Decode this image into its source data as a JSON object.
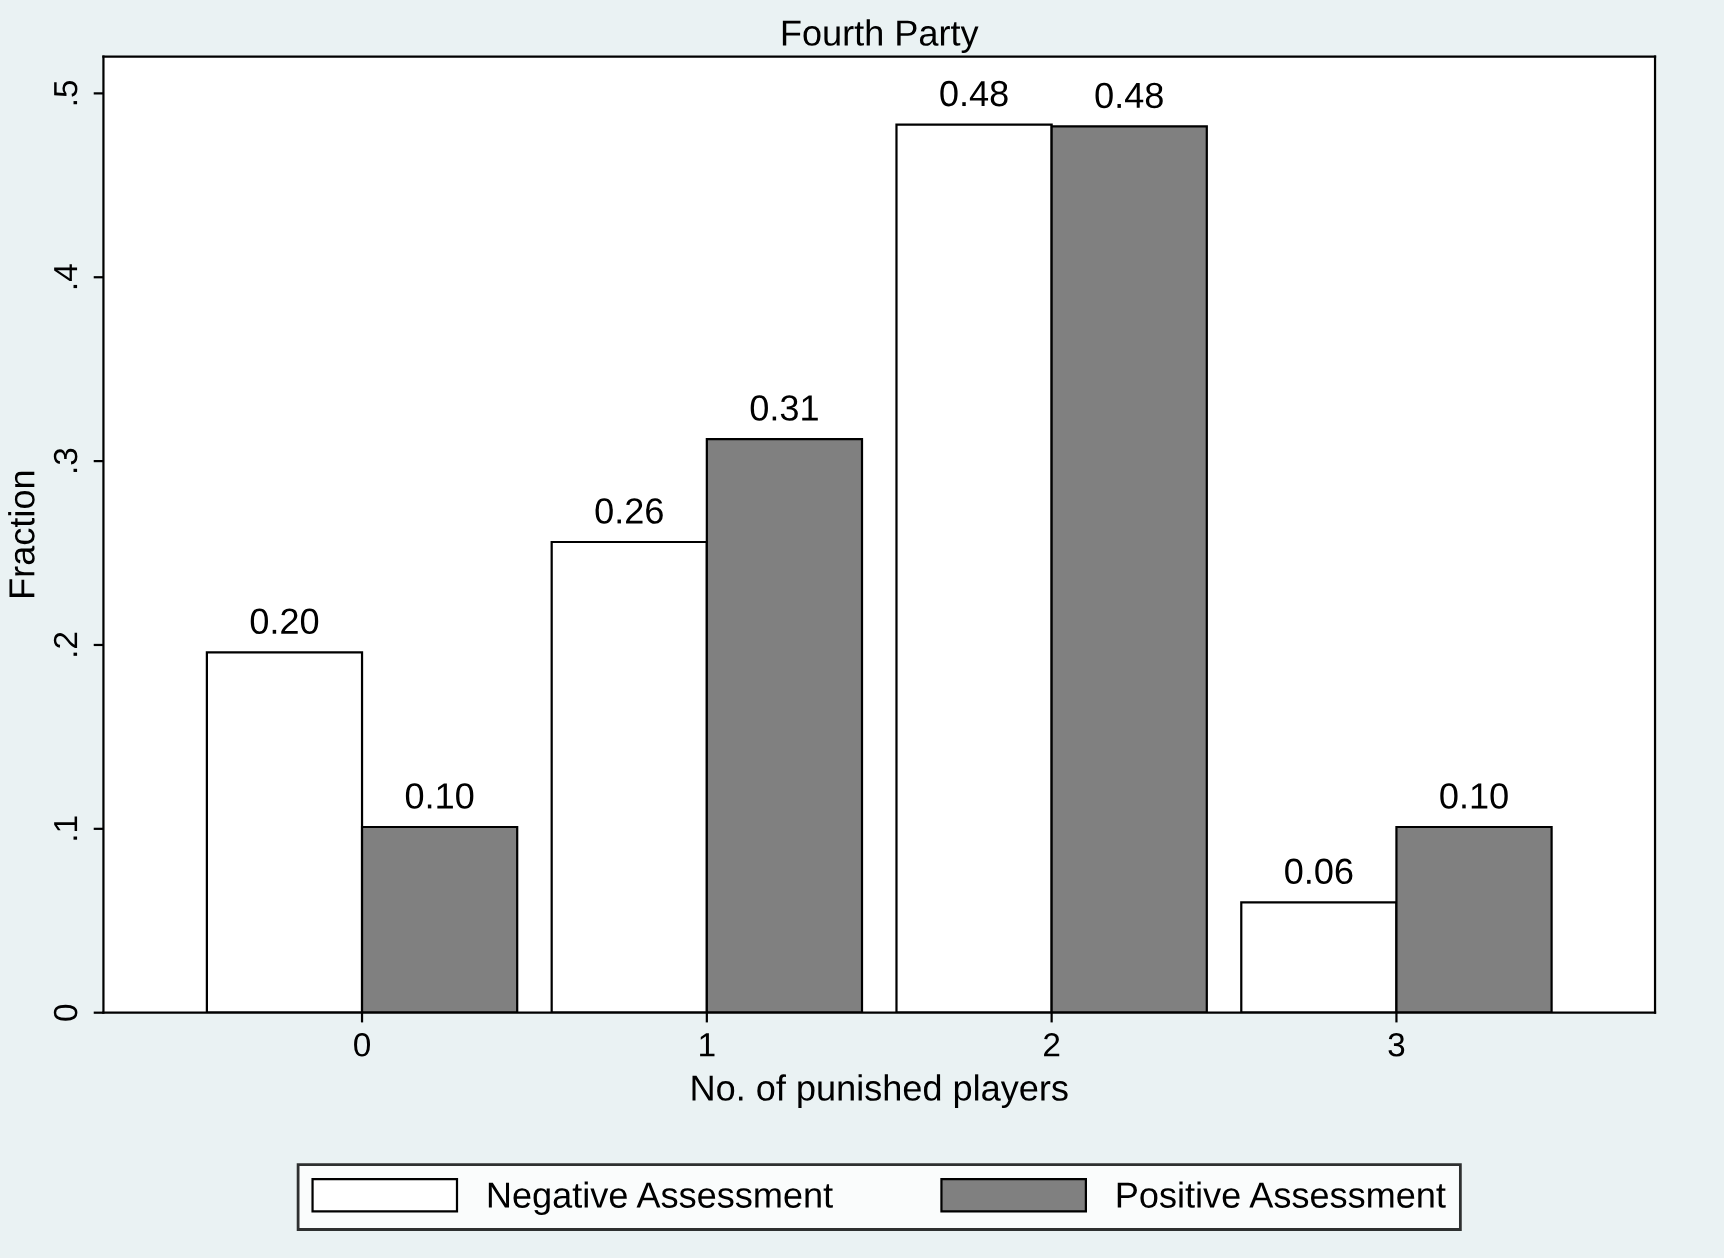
{
  "chart_data": {
    "type": "bar",
    "title": "Fourth Party",
    "xlabel": "No. of punished players",
    "ylabel": "Fraction",
    "categories": [
      "0",
      "1",
      "2",
      "3"
    ],
    "series": [
      {
        "name": "Negative Assessment",
        "color": "#ffffff",
        "values": [
          0.196,
          0.256,
          0.483,
          0.06
        ],
        "value_labels": [
          "0.20",
          "0.26",
          "0.48",
          "0.06"
        ]
      },
      {
        "name": "Positive Assessment",
        "color": "#808080",
        "values": [
          0.101,
          0.312,
          0.482,
          0.101
        ],
        "value_labels": [
          "0.10",
          "0.31",
          "0.48",
          "0.10"
        ]
      }
    ],
    "ylim": [
      0,
      0.52
    ],
    "yticks": [
      {
        "value": 0,
        "label": "0"
      },
      {
        "value": 0.1,
        "label": ".1"
      },
      {
        "value": 0.2,
        "label": ".2"
      },
      {
        "value": 0.3,
        "label": ".3"
      },
      {
        "value": 0.4,
        "label": ".4"
      },
      {
        "value": 0.5,
        "label": ".5"
      }
    ],
    "grid": false,
    "legend": "bottom"
  }
}
